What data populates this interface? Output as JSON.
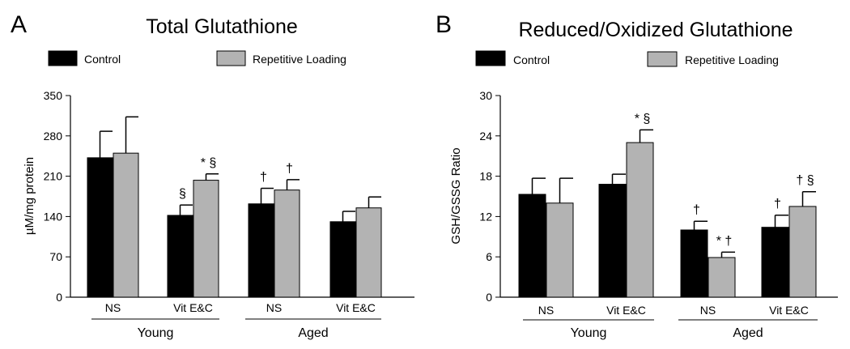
{
  "chart_data": [
    {
      "type": "bar",
      "panel_letter": "A",
      "title": "Total Glutathione",
      "ylabel": "µM/mg protein",
      "xlabel": "",
      "ylim": [
        0,
        350
      ],
      "yticks": [
        "0",
        "70",
        "140",
        "210",
        "280",
        "350"
      ],
      "grid": false,
      "legend_position": "top",
      "categories": [
        "NS",
        "Vit E&C",
        "NS",
        "Vit E&C"
      ],
      "groups": [
        {
          "label": "Young",
          "categories": [
            0,
            1
          ]
        },
        {
          "label": "Aged",
          "categories": [
            2,
            3
          ]
        }
      ],
      "series": [
        {
          "name": "Control",
          "color": "#000000",
          "values": [
            242,
            142,
            162,
            131
          ],
          "errors": [
            46,
            18,
            27,
            18
          ],
          "annotations": [
            "",
            "§",
            "†",
            ""
          ]
        },
        {
          "name": "Repetitive Loading",
          "color": "#b3b3b3",
          "values": [
            250,
            203,
            186,
            155
          ],
          "errors": [
            63,
            11,
            18,
            19
          ],
          "annotations": [
            "",
            "* §",
            "†",
            ""
          ]
        }
      ]
    },
    {
      "type": "bar",
      "panel_letter": "B",
      "title": "Reduced/Oxidized Glutathione",
      "ylabel": "GSH/GSSG Ratio",
      "xlabel": "",
      "ylim": [
        0,
        30
      ],
      "yticks": [
        "0",
        "6",
        "12",
        "18",
        "24",
        "30"
      ],
      "grid": false,
      "legend_position": "top",
      "categories": [
        "NS",
        "Vit E&C",
        "NS",
        "Vit E&C"
      ],
      "groups": [
        {
          "label": "Young",
          "categories": [
            0,
            1
          ]
        },
        {
          "label": "Aged",
          "categories": [
            2,
            3
          ]
        }
      ],
      "series": [
        {
          "name": "Control",
          "color": "#000000",
          "values": [
            15.3,
            16.8,
            10.0,
            10.4
          ],
          "errors": [
            2.4,
            1.5,
            1.3,
            1.8
          ],
          "annotations": [
            "",
            "",
            "†",
            "†"
          ]
        },
        {
          "name": "Repetitive Loading",
          "color": "#b3b3b3",
          "values": [
            14.0,
            23.0,
            5.9,
            13.5
          ],
          "errors": [
            3.7,
            1.9,
            0.8,
            2.2
          ],
          "annotations": [
            "",
            "* §",
            "* †",
            "† §"
          ]
        }
      ]
    }
  ]
}
